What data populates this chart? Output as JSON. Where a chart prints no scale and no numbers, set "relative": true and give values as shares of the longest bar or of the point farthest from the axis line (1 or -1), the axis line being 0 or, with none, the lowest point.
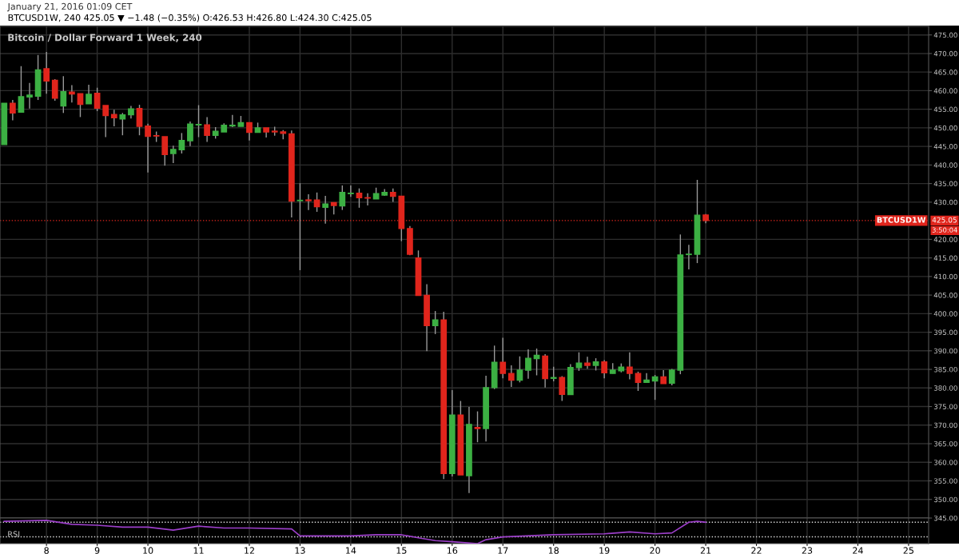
{
  "chart_data": [
    {
      "type": "candlestick",
      "title": "Bitcoin / Dollar Forward 1 Week, 240",
      "subtitle": "January 21, 2016 01:09 CET",
      "annotations": [
        "BTCUSD1W, 240 425.05 ▼ −1.48 (−0.35%) O:426.53 H:426.80 L:424.30 C:425.05",
        {
          "text": "425.05",
          "x": "2016-01-25T09:30",
          "y": 425.05
        },
        "3:50:04"
      ],
      "x": [
        "2016-01-07T04:00",
        "2016-01-07T08:00",
        "2016-01-07T12:00",
        "2016-01-07T16:00",
        "2016-01-07T20:00",
        "2016-01-08T00:00",
        "2016-01-08T04:00",
        "2016-01-08T08:00",
        "2016-01-08T12:00",
        "2016-01-08T16:00",
        "2016-01-08T20:00",
        "2016-01-09T00:00",
        "2016-01-09T04:00",
        "2016-01-09T08:00",
        "2016-01-09T12:00",
        "2016-01-09T16:00",
        "2016-01-09T20:00",
        "2016-01-10T00:00",
        "2016-01-10T04:00",
        "2016-01-10T08:00",
        "2016-01-10T12:00",
        "2016-01-10T16:00",
        "2016-01-10T20:00",
        "2016-01-11T00:00",
        "2016-01-11T04:00",
        "2016-01-11T08:00",
        "2016-01-11T12:00",
        "2016-01-11T16:00",
        "2016-01-11T20:00",
        "2016-01-12T00:00",
        "2016-01-12T04:00",
        "2016-01-12T08:00",
        "2016-01-12T12:00",
        "2016-01-12T16:00",
        "2016-01-12T20:00",
        "2016-01-13T00:00",
        "2016-01-13T04:00",
        "2016-01-13T08:00",
        "2016-01-13T12:00",
        "2016-01-13T16:00",
        "2016-01-13T20:00",
        "2016-01-14T00:00",
        "2016-01-14T04:00",
        "2016-01-14T08:00",
        "2016-01-14T12:00",
        "2016-01-14T16:00",
        "2016-01-14T20:00",
        "2016-01-15T00:00",
        "2016-01-15T04:00",
        "2016-01-15T08:00",
        "2016-01-15T12:00",
        "2016-01-15T16:00",
        "2016-01-15T20:00",
        "2016-01-16T00:00",
        "2016-01-16T04:00",
        "2016-01-16T08:00",
        "2016-01-16T12:00",
        "2016-01-16T16:00",
        "2016-01-16T20:00",
        "2016-01-17T00:00",
        "2016-01-17T04:00",
        "2016-01-17T08:00",
        "2016-01-17T12:00",
        "2016-01-17T16:00",
        "2016-01-17T20:00",
        "2016-01-18T00:00",
        "2016-01-18T04:00",
        "2016-01-18T08:00",
        "2016-01-18T12:00",
        "2016-01-18T16:00",
        "2016-01-18T20:00",
        "2016-01-19T00:00",
        "2016-01-19T04:00",
        "2016-01-19T08:00",
        "2016-01-19T12:00",
        "2016-01-19T16:00",
        "2016-01-19T20:00",
        "2016-01-20T00:00",
        "2016-01-20T04:00",
        "2016-01-20T08:00",
        "2016-01-20T12:00",
        "2016-01-20T16:00",
        "2016-01-20T20:00",
        "2016-01-21T00:00"
      ],
      "ohlc": [
        [
          445.5,
          456.6,
          445.5,
          456.6
        ],
        [
          456.6,
          457.5,
          452.0,
          454.0
        ],
        [
          454.2,
          466.6,
          454.2,
          458.4
        ],
        [
          458.3,
          462.1,
          455.2,
          458.8
        ],
        [
          458.5,
          469.6,
          457.5,
          465.6
        ],
        [
          465.9,
          470.4,
          459.2,
          462.6
        ],
        [
          462.8,
          463.1,
          457.3,
          458.0
        ],
        [
          455.9,
          463.9,
          454.0,
          459.7
        ],
        [
          459.6,
          461.5,
          456.8,
          459.1
        ],
        [
          459.2,
          459.2,
          452.9,
          456.3
        ],
        [
          456.5,
          461.6,
          456.5,
          459.0
        ],
        [
          459.3,
          460.8,
          454.5,
          455.3
        ],
        [
          456.0,
          456.0,
          447.5,
          453.3
        ],
        [
          453.6,
          454.9,
          450.4,
          452.7
        ],
        [
          452.4,
          454.0,
          448.0,
          453.5
        ],
        [
          453.5,
          455.9,
          452.5,
          455.1
        ],
        [
          455.2,
          456.2,
          448.0,
          450.4
        ],
        [
          450.5,
          451.1,
          438.0,
          447.7
        ],
        [
          447.9,
          449.0,
          446.2,
          447.8
        ],
        [
          447.6,
          447.6,
          439.8,
          442.8
        ],
        [
          443.1,
          445.2,
          440.5,
          444.2
        ],
        [
          444.1,
          448.6,
          443.1,
          446.6
        ],
        [
          446.5,
          451.7,
          445.1,
          451.0
        ],
        [
          450.8,
          456.1,
          447.5,
          450.9
        ],
        [
          450.8,
          452.9,
          446.2,
          448.0
        ],
        [
          448.0,
          450.2,
          447.1,
          449.1
        ],
        [
          448.9,
          451.2,
          448.9,
          450.7
        ],
        [
          450.5,
          453.5,
          450.2,
          450.7
        ],
        [
          450.4,
          453.2,
          450.4,
          451.4
        ],
        [
          451.4,
          451.4,
          446.6,
          448.8
        ],
        [
          448.8,
          451.4,
          448.8,
          450.0
        ],
        [
          450.0,
          450.0,
          447.4,
          448.9
        ],
        [
          449.1,
          450.3,
          447.9,
          448.9
        ],
        [
          448.9,
          449.4,
          446.9,
          448.5
        ],
        [
          448.4,
          449.3,
          425.9,
          430.3
        ],
        [
          430.4,
          435.1,
          411.7,
          430.5
        ],
        [
          430.6,
          432.1,
          427.9,
          430.4
        ],
        [
          430.6,
          432.6,
          427.4,
          428.8
        ],
        [
          428.6,
          431.7,
          424.2,
          429.5
        ],
        [
          429.9,
          429.9,
          426.7,
          429.1
        ],
        [
          429.0,
          434.5,
          427.9,
          432.6
        ],
        [
          432.3,
          434.5,
          431.4,
          432.4
        ],
        [
          432.4,
          433.7,
          428.5,
          431.2
        ],
        [
          431.2,
          432.4,
          429.1,
          431.1
        ],
        [
          430.9,
          433.9,
          430.9,
          432.3
        ],
        [
          431.9,
          433.5,
          431.7,
          432.6
        ],
        [
          432.6,
          433.7,
          430.1,
          431.6
        ],
        [
          431.6,
          431.6,
          419.5,
          422.9
        ],
        [
          422.9,
          423.6,
          415.7,
          416.0
        ],
        [
          415.0,
          417.0,
          404.9,
          404.9
        ],
        [
          404.9,
          407.9,
          389.9,
          396.8
        ],
        [
          396.8,
          400.7,
          394.5,
          398.3
        ],
        [
          398.3,
          400.5,
          355.5,
          357.0
        ],
        [
          357.0,
          379.4,
          356.2,
          372.7
        ],
        [
          372.7,
          376.5,
          356.6,
          356.6
        ],
        [
          356.4,
          374.9,
          351.7,
          370.2
        ],
        [
          369.4,
          373.7,
          365.4,
          369.1
        ],
        [
          369.1,
          383.3,
          365.6,
          380.1
        ],
        [
          380.1,
          391.4,
          379.7,
          386.9
        ],
        [
          386.9,
          393.5,
          382.6,
          383.9
        ],
        [
          383.9,
          386.1,
          380.3,
          382.1
        ],
        [
          382.1,
          388.5,
          381.5,
          384.8
        ],
        [
          384.8,
          390.4,
          382.5,
          388.0
        ],
        [
          387.9,
          390.6,
          383.4,
          388.8
        ],
        [
          388.6,
          389.1,
          380.1,
          382.5
        ],
        [
          382.6,
          385.7,
          381.8,
          382.8
        ],
        [
          382.8,
          383.2,
          376.5,
          378.3
        ],
        [
          378.2,
          386.4,
          378.2,
          385.5
        ],
        [
          385.5,
          389.6,
          384.6,
          386.7
        ],
        [
          386.7,
          388.4,
          385.2,
          386.1
        ],
        [
          386.1,
          388.0,
          384.7,
          387.0
        ],
        [
          387.0,
          387.5,
          382.6,
          384.1
        ],
        [
          383.9,
          386.7,
          383.9,
          384.8
        ],
        [
          384.6,
          386.6,
          384.2,
          385.6
        ],
        [
          385.6,
          389.6,
          382.3,
          383.9
        ],
        [
          383.9,
          384.4,
          379.2,
          381.5
        ],
        [
          381.5,
          384.0,
          381.5,
          382.1
        ],
        [
          381.9,
          383.5,
          376.8,
          383.0
        ],
        [
          383.0,
          384.8,
          381.2,
          381.2
        ],
        [
          381.3,
          385.1,
          380.7,
          384.8
        ],
        [
          384.8,
          421.3,
          383.7,
          415.8
        ],
        [
          415.9,
          418.5,
          411.9,
          416.0
        ],
        [
          416.0,
          436.0,
          413.6,
          426.5
        ],
        [
          426.53,
          426.8,
          424.3,
          425.05
        ]
      ],
      "colors": [
        "#3cb043",
        "#e0251c",
        "#3cb043",
        "#3cb043",
        "#3cb043",
        "#e0251c",
        "#e0251c",
        "#3cb043",
        "#e0251c",
        "#e0251c",
        "#3cb043",
        "#e0251c",
        "#e0251c",
        "#e0251c",
        "#3cb043",
        "#3cb043",
        "#e0251c",
        "#e0251c",
        "#e0251c",
        "#e0251c",
        "#3cb043",
        "#3cb043",
        "#3cb043",
        "#3cb043",
        "#e0251c",
        "#3cb043",
        "#3cb043",
        "#3cb043",
        "#3cb043",
        "#e0251c",
        "#3cb043",
        "#e0251c",
        "#e0251c",
        "#e0251c",
        "#e0251c",
        "#3cb043",
        "#e0251c",
        "#e0251c",
        "#3cb043",
        "#e0251c",
        "#3cb043",
        "#3cb043",
        "#e0251c",
        "#e0251c",
        "#3cb043",
        "#3cb043",
        "#e0251c",
        "#e0251c",
        "#e0251c",
        "#e0251c",
        "#e0251c",
        "#3cb043",
        "#e0251c",
        "#3cb043",
        "#e0251c",
        "#3cb043",
        "#e0251c",
        "#3cb043",
        "#3cb043",
        "#e0251c",
        "#e0251c",
        "#3cb043",
        "#3cb043",
        "#3cb043",
        "#e0251c",
        "#3cb043",
        "#e0251c",
        "#3cb043",
        "#3cb043",
        "#e0251c",
        "#3cb043",
        "#e0251c",
        "#3cb043",
        "#3cb043",
        "#e0251c",
        "#e0251c",
        "#3cb043",
        "#3cb043",
        "#e0251c",
        "#3cb043",
        "#3cb043",
        "#3cb043",
        "#3cb043",
        "#e0251c"
      ],
      "ref_lines": [
        {
          "axis": "y",
          "value": 425.05,
          "label": "BTCUSD1W",
          "color": "#e0251c",
          "line_style": "dotted"
        }
      ],
      "xlim": [
        "2016-01-07T02:00",
        "2016-01-25T09:30"
      ],
      "xticks": [
        {
          "value": "2016-01-08",
          "label": null
        },
        {
          "value": "2016-01-09",
          "label": null
        },
        {
          "value": "2016-01-10",
          "label": null
        },
        {
          "value": "2016-01-11",
          "label": null
        },
        {
          "value": "2016-01-12",
          "label": null
        },
        {
          "value": "2016-01-13",
          "label": null
        },
        {
          "value": "2016-01-14",
          "label": null
        },
        {
          "value": "2016-01-15",
          "label": null
        },
        {
          "value": "2016-01-16",
          "label": null
        },
        {
          "value": "2016-01-17",
          "label": null
        },
        {
          "value": "2016-01-18",
          "label": null
        },
        {
          "value": "2016-01-19",
          "label": null
        },
        {
          "value": "2016-01-20",
          "label": null
        },
        {
          "value": "2016-01-21",
          "label": null
        },
        {
          "value": "2016-01-22",
          "label": null
        },
        {
          "value": "2016-01-23",
          "label": null
        },
        {
          "value": "2016-01-24",
          "label": null
        },
        {
          "value": "2016-01-25",
          "label": null
        }
      ],
      "ylim": [
        345,
        477.3
      ],
      "yticks": [
        {
          "value": 345,
          "label": "345.00"
        },
        {
          "value": 350,
          "label": "350.00"
        },
        {
          "value": 355,
          "label": "355.00"
        },
        {
          "value": 360,
          "label": "360.00"
        },
        {
          "value": 365,
          "label": "365.00"
        },
        {
          "value": 370,
          "label": "370.00"
        },
        {
          "value": 375,
          "label": "375.00"
        },
        {
          "value": 380,
          "label": "380.00"
        },
        {
          "value": 385,
          "label": "385.00"
        },
        {
          "value": 390,
          "label": "390.00"
        },
        {
          "value": 395,
          "label": "395.00"
        },
        {
          "value": 400,
          "label": "400.00"
        },
        {
          "value": 405,
          "label": "405.00"
        },
        {
          "value": 410,
          "label": "410.00"
        },
        {
          "value": 415,
          "label": "415.00"
        },
        {
          "value": 420,
          "label": "420.00"
        },
        {
          "value": 430,
          "label": "430.00"
        },
        {
          "value": 435,
          "label": "435.00"
        },
        {
          "value": 440,
          "label": "440.00"
        },
        {
          "value": 445,
          "label": "445.00"
        },
        {
          "value": 450,
          "label": "450.00"
        },
        {
          "value": 455,
          "label": "455.00"
        },
        {
          "value": 460,
          "label": "460.00"
        },
        {
          "value": 465,
          "label": "465.00"
        },
        {
          "value": 470,
          "label": "470.00"
        },
        {
          "value": 475,
          "label": "475.00"
        }
      ],
      "grid": true,
      "tick_labels": "y"
    },
    {
      "type": "line",
      "title": "RSI",
      "relative": true,
      "series": [
        {
          "color": "#9c3fc9",
          "x": [
            "2016-01-07T04:00",
            "2016-01-08T00:00",
            "2016-01-08T12:00",
            "2016-01-09T00:00",
            "2016-01-09T12:00",
            "2016-01-10T00:00",
            "2016-01-10T12:00",
            "2016-01-11T00:00",
            "2016-01-11T12:00",
            "2016-01-12T00:00",
            "2016-01-12T20:00",
            "2016-01-13T00:00",
            "2016-01-14T00:00",
            "2016-01-14T12:00",
            "2016-01-15T00:00",
            "2016-01-15T08:00",
            "2016-01-15T16:00",
            "2016-01-16T00:00",
            "2016-01-16T12:00",
            "2016-01-16T16:00",
            "2016-01-17T00:00",
            "2016-01-18T00:00",
            "2016-01-19T00:00",
            "2016-01-19T12:00",
            "2016-01-20T00:00",
            "2016-01-20T08:00",
            "2016-01-20T16:00",
            "2016-01-20T20:00",
            "2016-01-21T00:00"
          ],
          "values": [
            0.96,
            1.0,
            0.83,
            0.79,
            0.71,
            0.71,
            0.58,
            0.75,
            0.67,
            0.67,
            0.63,
            0.33,
            0.33,
            0.38,
            0.38,
            0.25,
            0.13,
            0.08,
            0.0,
            0.17,
            0.29,
            0.38,
            0.42,
            0.5,
            0.42,
            0.46,
            0.92,
            0.96,
            0.92
          ]
        }
      ],
      "ref_lines": [
        {
          "axis": "y",
          "value": 0.92,
          "color": "#dddddd",
          "line_style": "dotted"
        },
        {
          "axis": "y",
          "value": 0.29,
          "color": "#dddddd",
          "line_style": "dotted"
        }
      ],
      "xlim": [
        "2016-01-07T02:00",
        "2016-01-25T09:30"
      ],
      "xticks": [
        {
          "value": "2016-01-08",
          "label": "8"
        },
        {
          "value": "2016-01-09",
          "label": "9"
        },
        {
          "value": "2016-01-10",
          "label": "10"
        },
        {
          "value": "2016-01-11",
          "label": "11"
        },
        {
          "value": "2016-01-12",
          "label": "12"
        },
        {
          "value": "2016-01-13",
          "label": "13"
        },
        {
          "value": "2016-01-14",
          "label": "14"
        },
        {
          "value": "2016-01-15",
          "label": "15"
        },
        {
          "value": "2016-01-16",
          "label": "16"
        },
        {
          "value": "2016-01-17",
          "label": "17"
        },
        {
          "value": "2016-01-18",
          "label": "18"
        },
        {
          "value": "2016-01-19",
          "label": "19"
        },
        {
          "value": "2016-01-20",
          "label": "20"
        },
        {
          "value": "2016-01-21",
          "label": "21"
        },
        {
          "value": "2016-01-22",
          "label": "22"
        },
        {
          "value": "2016-01-23",
          "label": "23"
        },
        {
          "value": "2016-01-24",
          "label": "24"
        },
        {
          "value": "2016-01-25",
          "label": "25"
        }
      ],
      "grid": "x",
      "tick_labels": "x"
    }
  ]
}
